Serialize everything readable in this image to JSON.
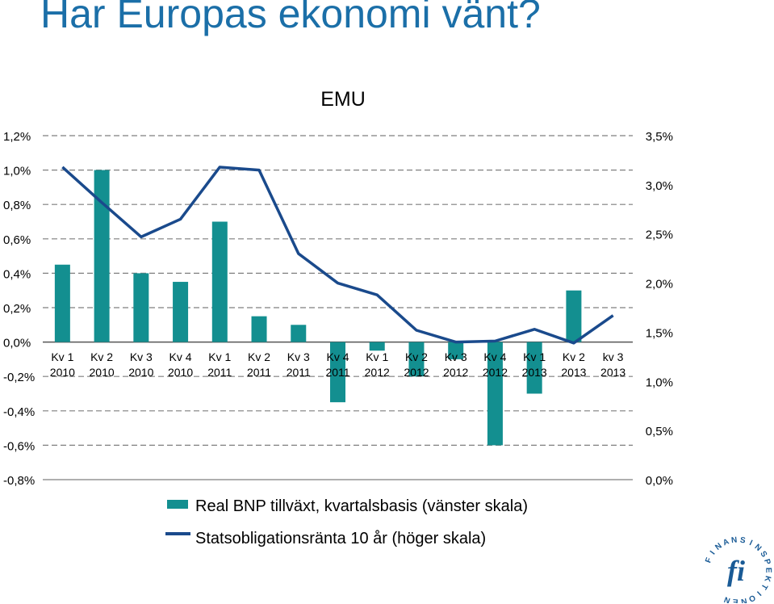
{
  "slide": {
    "title": "Har Europas ekonomi vänt?"
  },
  "colors": {
    "title": "#1b6fa8",
    "bars": "#138f90",
    "line": "#1a4a8c",
    "grid": "#7f7f7f",
    "logo": "#1a5b96"
  },
  "logo": {
    "text": "FINANSINSPEKTIONEN",
    "mark": "fi"
  },
  "chart_data": {
    "type": "bar",
    "title": "EMU",
    "categories": [
      [
        "Kv 1",
        "2010"
      ],
      [
        "Kv 2",
        "2010"
      ],
      [
        "Kv 3",
        "2010"
      ],
      [
        "Kv 4",
        "2010"
      ],
      [
        "Kv 1",
        "2011"
      ],
      [
        "Kv 2",
        "2011"
      ],
      [
        "Kv 3",
        "2011"
      ],
      [
        "Kv 4",
        "2011"
      ],
      [
        "Kv 1",
        "2012"
      ],
      [
        "Kv 2",
        "2012"
      ],
      [
        "Kv 3",
        "2012"
      ],
      [
        "Kv 4",
        "2012"
      ],
      [
        "Kv 1",
        "2013"
      ],
      [
        "Kv 2",
        "2013"
      ],
      [
        "kv 3",
        "2013"
      ]
    ],
    "series": [
      {
        "name": "Real BNP tillväxt, kvartalsbasis (vänster skala)",
        "type": "bar",
        "axis": "left",
        "values": [
          0.45,
          1.0,
          0.4,
          0.35,
          0.7,
          0.15,
          0.1,
          -0.35,
          -0.05,
          -0.2,
          -0.1,
          -0.6,
          -0.3,
          0.3,
          null
        ]
      },
      {
        "name": "Statsobligationsränta 10 år (höger skala)",
        "type": "line",
        "axis": "right",
        "values": [
          3.18,
          2.82,
          2.47,
          2.65,
          3.18,
          3.15,
          2.3,
          2.0,
          1.88,
          1.52,
          1.4,
          1.41,
          1.53,
          1.39,
          1.67
        ]
      }
    ],
    "y_left": {
      "min": -0.8,
      "max": 1.2,
      "ticks": [
        "1,2%",
        "1,0%",
        "0,8%",
        "0,6%",
        "0,4%",
        "0,2%",
        "0,0%",
        "-0,2%",
        "-0,4%",
        "-0,6%",
        "-0,8%"
      ]
    },
    "y_right": {
      "min": 0.0,
      "max": 3.5,
      "ticks": [
        "3,5%",
        "3,0%",
        "2,5%",
        "2,0%",
        "1,5%",
        "1,0%",
        "0,5%",
        "0,0%"
      ]
    },
    "grid": "dashed horizontal",
    "legend_position": "bottom"
  }
}
